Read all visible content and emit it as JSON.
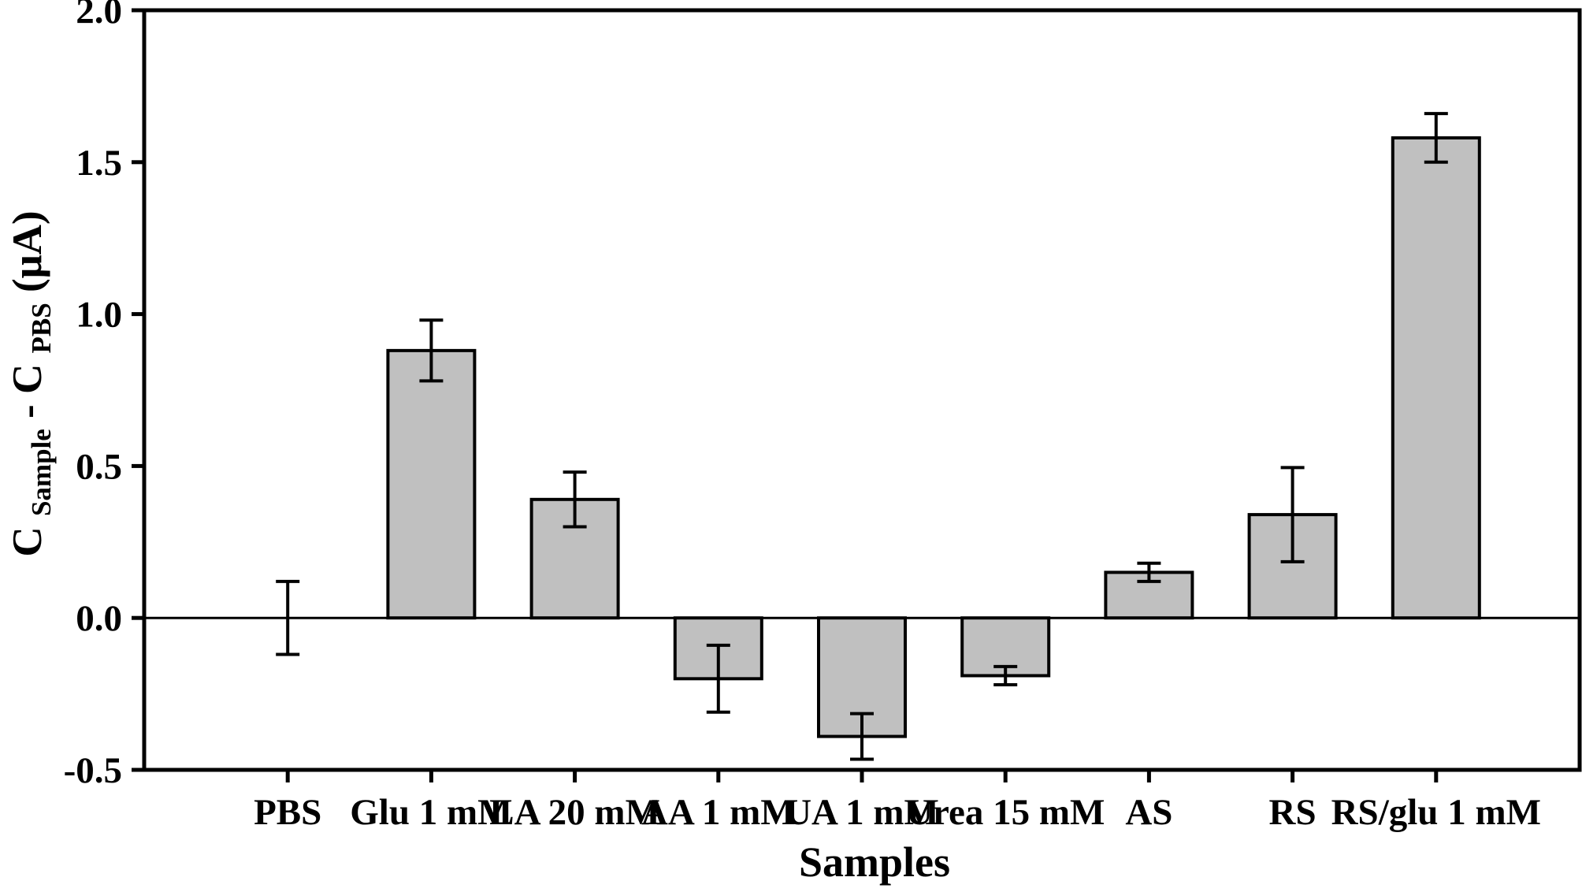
{
  "figure": {
    "background": "#ffffff",
    "line_color": "#000000"
  },
  "chart_data": {
    "type": "bar",
    "title": "",
    "xlabel": "Samples",
    "ylabel": "C_Sample - C_PBS (uA)",
    "ylabel_parts": {
      "p1": "C",
      "s1": "Sample",
      "p2": " - C",
      "s2": "PBS",
      "p3": " (μA)"
    },
    "ylim": [
      -0.5,
      2.0
    ],
    "yticks": [
      2.0,
      1.5,
      1.0,
      0.5,
      0.0,
      -0.5
    ],
    "ytick_labels": [
      "2.0",
      "1.5",
      "1.0",
      "0.5",
      "0.0",
      "-0.5"
    ],
    "grid": false,
    "legend": null,
    "bar_color": "#c0c0c0",
    "categories": [
      "PBS",
      "Glu 1 mM",
      "LA 20 mM",
      "AA 1 mM",
      "UA 1 mM",
      "Urea 15 mM",
      "AS",
      "RS",
      "RS/glu 1 mM"
    ],
    "values": [
      0.0,
      0.88,
      0.39,
      -0.2,
      -0.39,
      -0.19,
      0.15,
      0.34,
      1.58
    ],
    "errors": [
      0.12,
      0.1,
      0.09,
      0.11,
      0.075,
      0.03,
      0.03,
      0.155,
      0.08
    ]
  }
}
